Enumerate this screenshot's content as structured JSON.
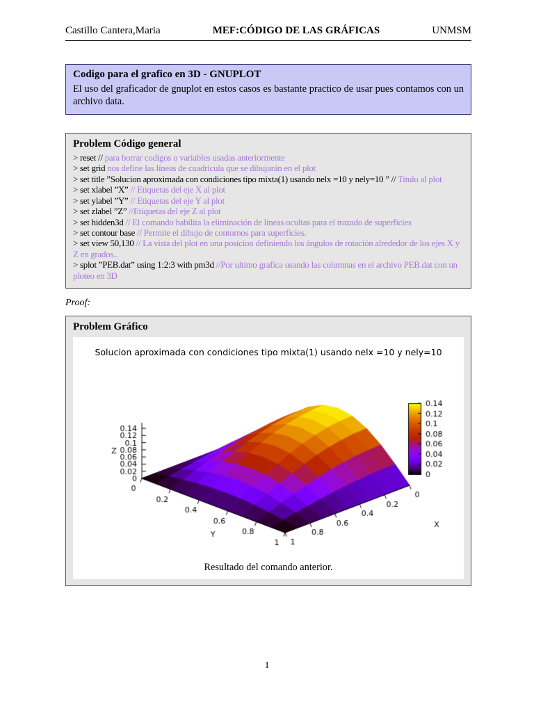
{
  "header": {
    "author": "Castillo Cantera,Maria",
    "title": "MEF:CÓDIGO DE LAS GRÁFICAS",
    "institution": "UNMSM"
  },
  "info_box": {
    "title": "Codigo para el grafico en 3D - GNUPLOT",
    "body": "El uso del graficador de gnuplot en estos casos es bastante practico de usar pues contamos con un archivo data."
  },
  "general_box": {
    "title": "Problem Código general",
    "lines": [
      {
        "code": "> reset // ",
        "comment": "para borrar codigos o variables usadas anteriormente"
      },
      {
        "code": "> set grid ",
        "comment": "nos define las líneas de cuadrícula que se dibujarán en el plot"
      },
      {
        "code": "> set title ”Solucion aproximada con condiciones tipo mixta(1) usando nelx =10 y nely=10 ” // ",
        "comment": "Titulo al plot"
      },
      {
        "code": "> set xlabel ”X” ",
        "comment": "// Etiquetas del eje X al plot"
      },
      {
        "code": "> set ylabel ”Y” ",
        "comment": "// Etiquetas del eje Y al plot"
      },
      {
        "code": "> set zlabel ”Z” ",
        "comment": "//Etiquetas del eje Z al plot"
      },
      {
        "code": "> set hidden3d ",
        "comment": "// El comando habilita la eliminación de líneas ocultas para el trazado de superficies"
      },
      {
        "code": "> set contour base ",
        "comment": "// Permite el dibujo de contornos para superficies."
      },
      {
        "code": "> set view 50,130 ",
        "comment": "// La vista del plot en una posicion definiendo los ángulos de rotación alrededor de los ejes X y Z en grados.."
      },
      {
        "code": "> splot ”PEB.dat” using 1:2:3 with pm3d ",
        "comment": "//Por ultimo grafica usando las columnas en el archivo PEB.dat con un ploteo en 3D"
      }
    ]
  },
  "proof_label": "Proof:",
  "graph_box": {
    "title": "Problem Gráfico",
    "caption": "Resultado del comando anterior."
  },
  "page_number": "1",
  "chart_data": {
    "type": "surface3d",
    "title": "Solucion aproximada con condiciones tipo mixta(1) usando nelx =10 y nely=10",
    "xlabel": "X",
    "ylabel": "Y",
    "zlabel": "Z",
    "view": "50,130",
    "grid": true,
    "palette": "pm3d black-purple-red-orange-yellow",
    "x": [
      0,
      0.1,
      0.2,
      0.3,
      0.4,
      0.5,
      0.6,
      0.7,
      0.8,
      0.9,
      1
    ],
    "y": [
      0,
      0.1,
      0.2,
      0.3,
      0.4,
      0.5,
      0.6,
      0.7,
      0.8,
      0.9,
      1
    ],
    "z_grid": [
      [
        0,
        0.0433,
        0.0823,
        0.1133,
        0.1331,
        0.14,
        0.1331,
        0.1133,
        0.0823,
        0.0433,
        0
      ],
      [
        0,
        0.0427,
        0.0813,
        0.1119,
        0.1315,
        0.1383,
        0.1315,
        0.1119,
        0.0813,
        0.0427,
        0
      ],
      [
        0,
        0.0411,
        0.0783,
        0.1077,
        0.1266,
        0.1332,
        0.1266,
        0.1077,
        0.0783,
        0.0411,
        0
      ],
      [
        0,
        0.0385,
        0.0733,
        0.1009,
        0.1186,
        0.1247,
        0.1186,
        0.1009,
        0.0733,
        0.0385,
        0
      ],
      [
        0,
        0.035,
        0.0666,
        0.0916,
        0.1077,
        0.1133,
        0.1077,
        0.0916,
        0.0666,
        0.035,
        0
      ],
      [
        0,
        0.0306,
        0.0582,
        0.0801,
        0.0941,
        0.099,
        0.0941,
        0.0801,
        0.0582,
        0.0306,
        0
      ],
      [
        0,
        0.0254,
        0.0484,
        0.0666,
        0.0783,
        0.0823,
        0.0783,
        0.0666,
        0.0484,
        0.0254,
        0
      ],
      [
        0,
        0.0196,
        0.0374,
        0.0514,
        0.0604,
        0.0636,
        0.0604,
        0.0514,
        0.0374,
        0.0196,
        0
      ],
      [
        0,
        0.0134,
        0.0254,
        0.035,
        0.0411,
        0.0433,
        0.0411,
        0.035,
        0.0254,
        0.0134,
        0
      ],
      [
        0,
        0.0068,
        0.0129,
        0.0177,
        0.0208,
        0.0219,
        0.0208,
        0.0177,
        0.0129,
        0.0068,
        0
      ],
      [
        0,
        0,
        0,
        0,
        0,
        0,
        0,
        0,
        0,
        0,
        0
      ]
    ],
    "zrange": [
      0,
      0.14
    ],
    "xticks": [
      0,
      0.2,
      0.4,
      0.6,
      0.8,
      1
    ],
    "yticks": [
      0,
      0.2,
      0.4,
      0.6,
      0.8,
      1
    ],
    "zticks": [
      0,
      0.02,
      0.04,
      0.06,
      0.08,
      0.1,
      0.12,
      0.14
    ],
    "colorbar_ticks": [
      0,
      0.02,
      0.04,
      0.06,
      0.08,
      0.1,
      0.12,
      0.14
    ],
    "contour_levels": [
      0.02,
      0.04,
      0.06,
      0.08,
      0.1,
      0.12
    ],
    "contour_colors": [
      "#00b3a8",
      "#2f9e44",
      "#4263c8",
      "#00b3a8",
      "#2f9e44",
      "#4263c8"
    ]
  }
}
